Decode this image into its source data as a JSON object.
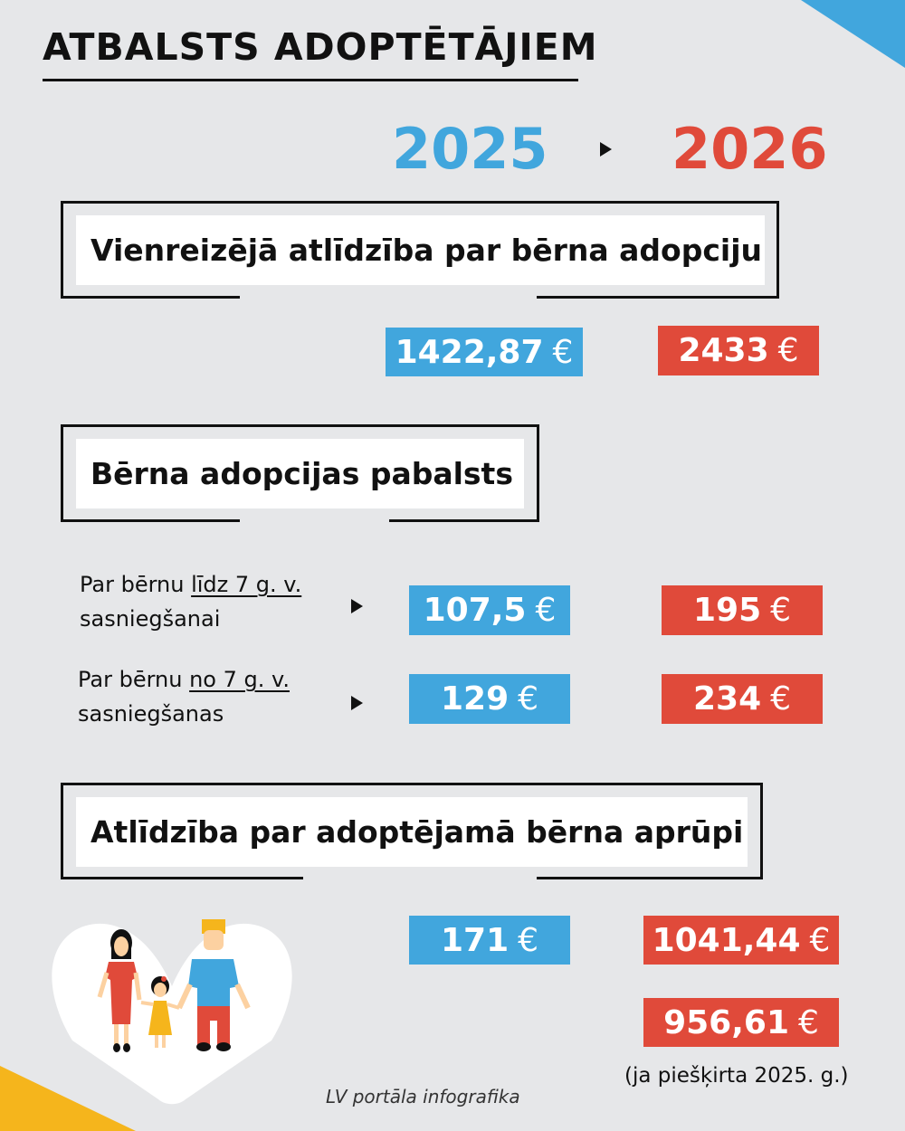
{
  "title": "ATBALSTS ADOPTĒTĀJIEM",
  "years": {
    "from": "2025",
    "to": "2026"
  },
  "colors": {
    "background": "#e6e7e9",
    "year_2025": "#41a6dd",
    "year_2026": "#e04a3a",
    "accent_yellow": "#f5b51c"
  },
  "sections": [
    {
      "heading": "Vienreizējā atlīdzība par bērna adopciju",
      "value_2025": "1422,87",
      "value_2026": "2433",
      "currency": "€"
    },
    {
      "heading": "Bērna adopcijas pabalsts",
      "rows": [
        {
          "prefix": "Par bērnu ",
          "underlined": "līdz 7 g. v.",
          "suffix": "sasniegšanai",
          "value_2025": "107,5",
          "value_2026": "195",
          "currency": "€"
        },
        {
          "prefix": "Par bērnu ",
          "underlined": "no 7 g. v.",
          "suffix": "sasniegšanas",
          "value_2025": "129",
          "value_2026": "234",
          "currency": "€"
        }
      ]
    },
    {
      "heading": "Atlīdzība par adoptējamā bērna aprūpi",
      "value_2025": "171",
      "value_2026": "1041,44",
      "value_2026_alt": "956,61",
      "currency": "€",
      "alt_note": "(ja piešķirta 2025. g.)"
    }
  ],
  "credit": "LV portāla infografika"
}
